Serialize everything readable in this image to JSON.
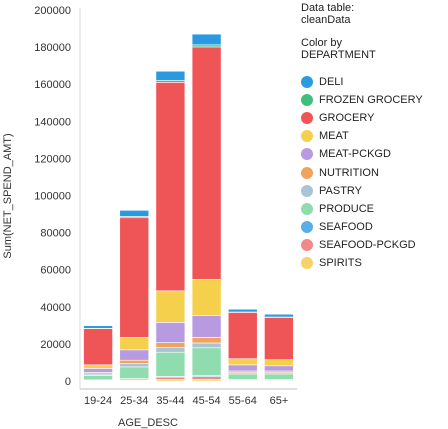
{
  "panel": {
    "data_table_label": "Data table:",
    "data_table_name": "cleanData",
    "color_by_label": "Color by",
    "color_by_field": "DEPARTMENT"
  },
  "chart_data": {
    "type": "bar",
    "stacked": true,
    "xlabel": "AGE_DESC",
    "ylabel": "Sum(NET_SPEND_AMT)",
    "ylim": [
      0,
      200000
    ],
    "y_ticks": [
      0,
      20000,
      40000,
      60000,
      80000,
      100000,
      120000,
      140000,
      160000,
      180000,
      200000
    ],
    "y_tick_labels": [
      "0",
      "20000",
      "40000",
      "60000",
      "80000",
      "100000",
      "120000",
      "140000",
      "160000",
      "180000",
      "200000"
    ],
    "categories": [
      "19-24",
      "25-34",
      "35-44",
      "45-54",
      "55-64",
      "65+"
    ],
    "grid": false,
    "legend": "right",
    "series": [
      {
        "name": "SPIRITS",
        "color": "#f7d26a",
        "values": [
          200,
          400,
          800,
          900,
          300,
          300
        ]
      },
      {
        "name": "SEAFOOD-PCKGD",
        "color": "#f08a8a",
        "values": [
          300,
          600,
          1300,
          1500,
          400,
          400
        ]
      },
      {
        "name": "SEAFOOD",
        "color": "#5aaee8",
        "values": [
          100,
          300,
          400,
          500,
          100,
          100
        ]
      },
      {
        "name": "PRODUCE",
        "color": "#8fdcaf",
        "values": [
          2400,
          6300,
          13000,
          15000,
          3000,
          3000
        ]
      },
      {
        "name": "PASTRY",
        "color": "#a8c4d6",
        "values": [
          800,
          1800,
          2500,
          2600,
          700,
          700
        ]
      },
      {
        "name": "NUTRITION",
        "color": "#f0a35e",
        "values": [
          800,
          1800,
          2700,
          3000,
          900,
          900
        ]
      },
      {
        "name": "MEAT-PCKGD",
        "color": "#b89ae0",
        "values": [
          2200,
          5600,
          10900,
          11800,
          3300,
          2800
        ]
      },
      {
        "name": "MEAT",
        "color": "#f5d04c",
        "values": [
          1900,
          6700,
          17000,
          19500,
          3300,
          3300
        ]
      },
      {
        "name": "GROCERY",
        "color": "#ef5557",
        "values": [
          19500,
          64500,
          112400,
          125300,
          25000,
          22800
        ]
      },
      {
        "name": "FROZEN GROCERY",
        "color": "#3fbf7f",
        "values": [
          200,
          700,
          1000,
          1100,
          200,
          200
        ]
      },
      {
        "name": "DELI",
        "color": "#2a9ae0",
        "values": [
          1400,
          3300,
          5000,
          5800,
          1500,
          1500
        ]
      }
    ],
    "legend_order": [
      "DELI",
      "FROZEN GROCERY",
      "GROCERY",
      "MEAT",
      "MEAT-PCKGD",
      "NUTRITION",
      "PASTRY",
      "PRODUCE",
      "SEAFOOD",
      "SEAFOOD-PCKGD",
      "SPIRITS"
    ]
  }
}
